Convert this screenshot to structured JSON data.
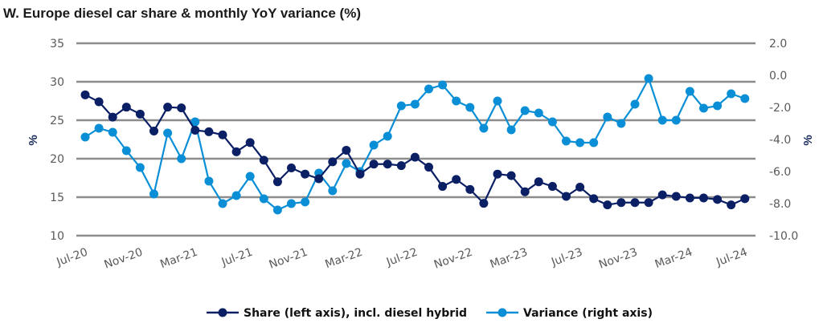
{
  "chart_data": {
    "type": "line",
    "title": "W. Europe diesel car share & monthly YoY variance (%)",
    "ylabel_left": "%",
    "ylabel_right": "%",
    "ylim_left": [
      10,
      35
    ],
    "ylim_right": [
      -10,
      2
    ],
    "yticks_left": [
      "35",
      "30",
      "25",
      "20",
      "15",
      "10"
    ],
    "yticks_right": [
      "2.0",
      "0.0",
      "-2.0",
      "-4.0",
      "-6.0",
      "-8.0",
      "-10.0"
    ],
    "xtick_labels": [
      "Jul-20",
      "Nov-20",
      "Mar-21",
      "Jul-21",
      "Nov-21",
      "Mar-22",
      "Jul-22",
      "Nov-22",
      "Mar-23",
      "Jul-23",
      "Nov-23",
      "Mar-24",
      "Jul-24"
    ],
    "x_start": "Jul-20",
    "x_end": "Jul-24",
    "grid": true,
    "legend_position": "bottom",
    "series": [
      {
        "name": "Share (left axis), incl. diesel hybrid",
        "axis": "left",
        "color": "#0b1f65",
        "values": [
          28.3,
          27.4,
          25.4,
          26.7,
          25.8,
          23.6,
          26.7,
          26.6,
          23.7,
          23.5,
          23.1,
          20.9,
          22.1,
          19.8,
          17.0,
          18.8,
          18.0,
          17.4,
          19.6,
          21.1,
          18.0,
          19.3,
          19.3,
          19.1,
          20.2,
          18.9,
          16.4,
          17.3,
          16.0,
          14.2,
          18.0,
          17.8,
          15.7,
          17.0,
          16.4,
          15.1,
          16.3,
          14.8,
          14.0,
          14.3,
          14.3,
          14.3,
          15.3,
          15.1,
          14.9,
          14.9,
          14.7,
          14.0,
          14.8
        ]
      },
      {
        "name": "Variance (right axis)",
        "axis": "right",
        "color": "#0a8fd6",
        "values": [
          -3.85,
          -3.3,
          -3.55,
          -4.7,
          -5.75,
          -7.4,
          -3.6,
          -5.2,
          -2.9,
          -6.6,
          -8.0,
          -7.5,
          -6.3,
          -7.7,
          -8.4,
          -8.0,
          -7.9,
          -6.1,
          -7.2,
          -5.5,
          -6.0,
          -4.35,
          -3.8,
          -1.9,
          -1.8,
          -0.85,
          -0.6,
          -1.6,
          -2.0,
          -3.3,
          -1.6,
          -3.4,
          -2.2,
          -2.35,
          -2.9,
          -4.1,
          -4.2,
          -4.2,
          -2.6,
          -3.0,
          -1.8,
          -0.2,
          -2.8,
          -2.8,
          -1.0,
          -2.05,
          -1.9,
          -1.15,
          -1.45
        ]
      }
    ]
  }
}
